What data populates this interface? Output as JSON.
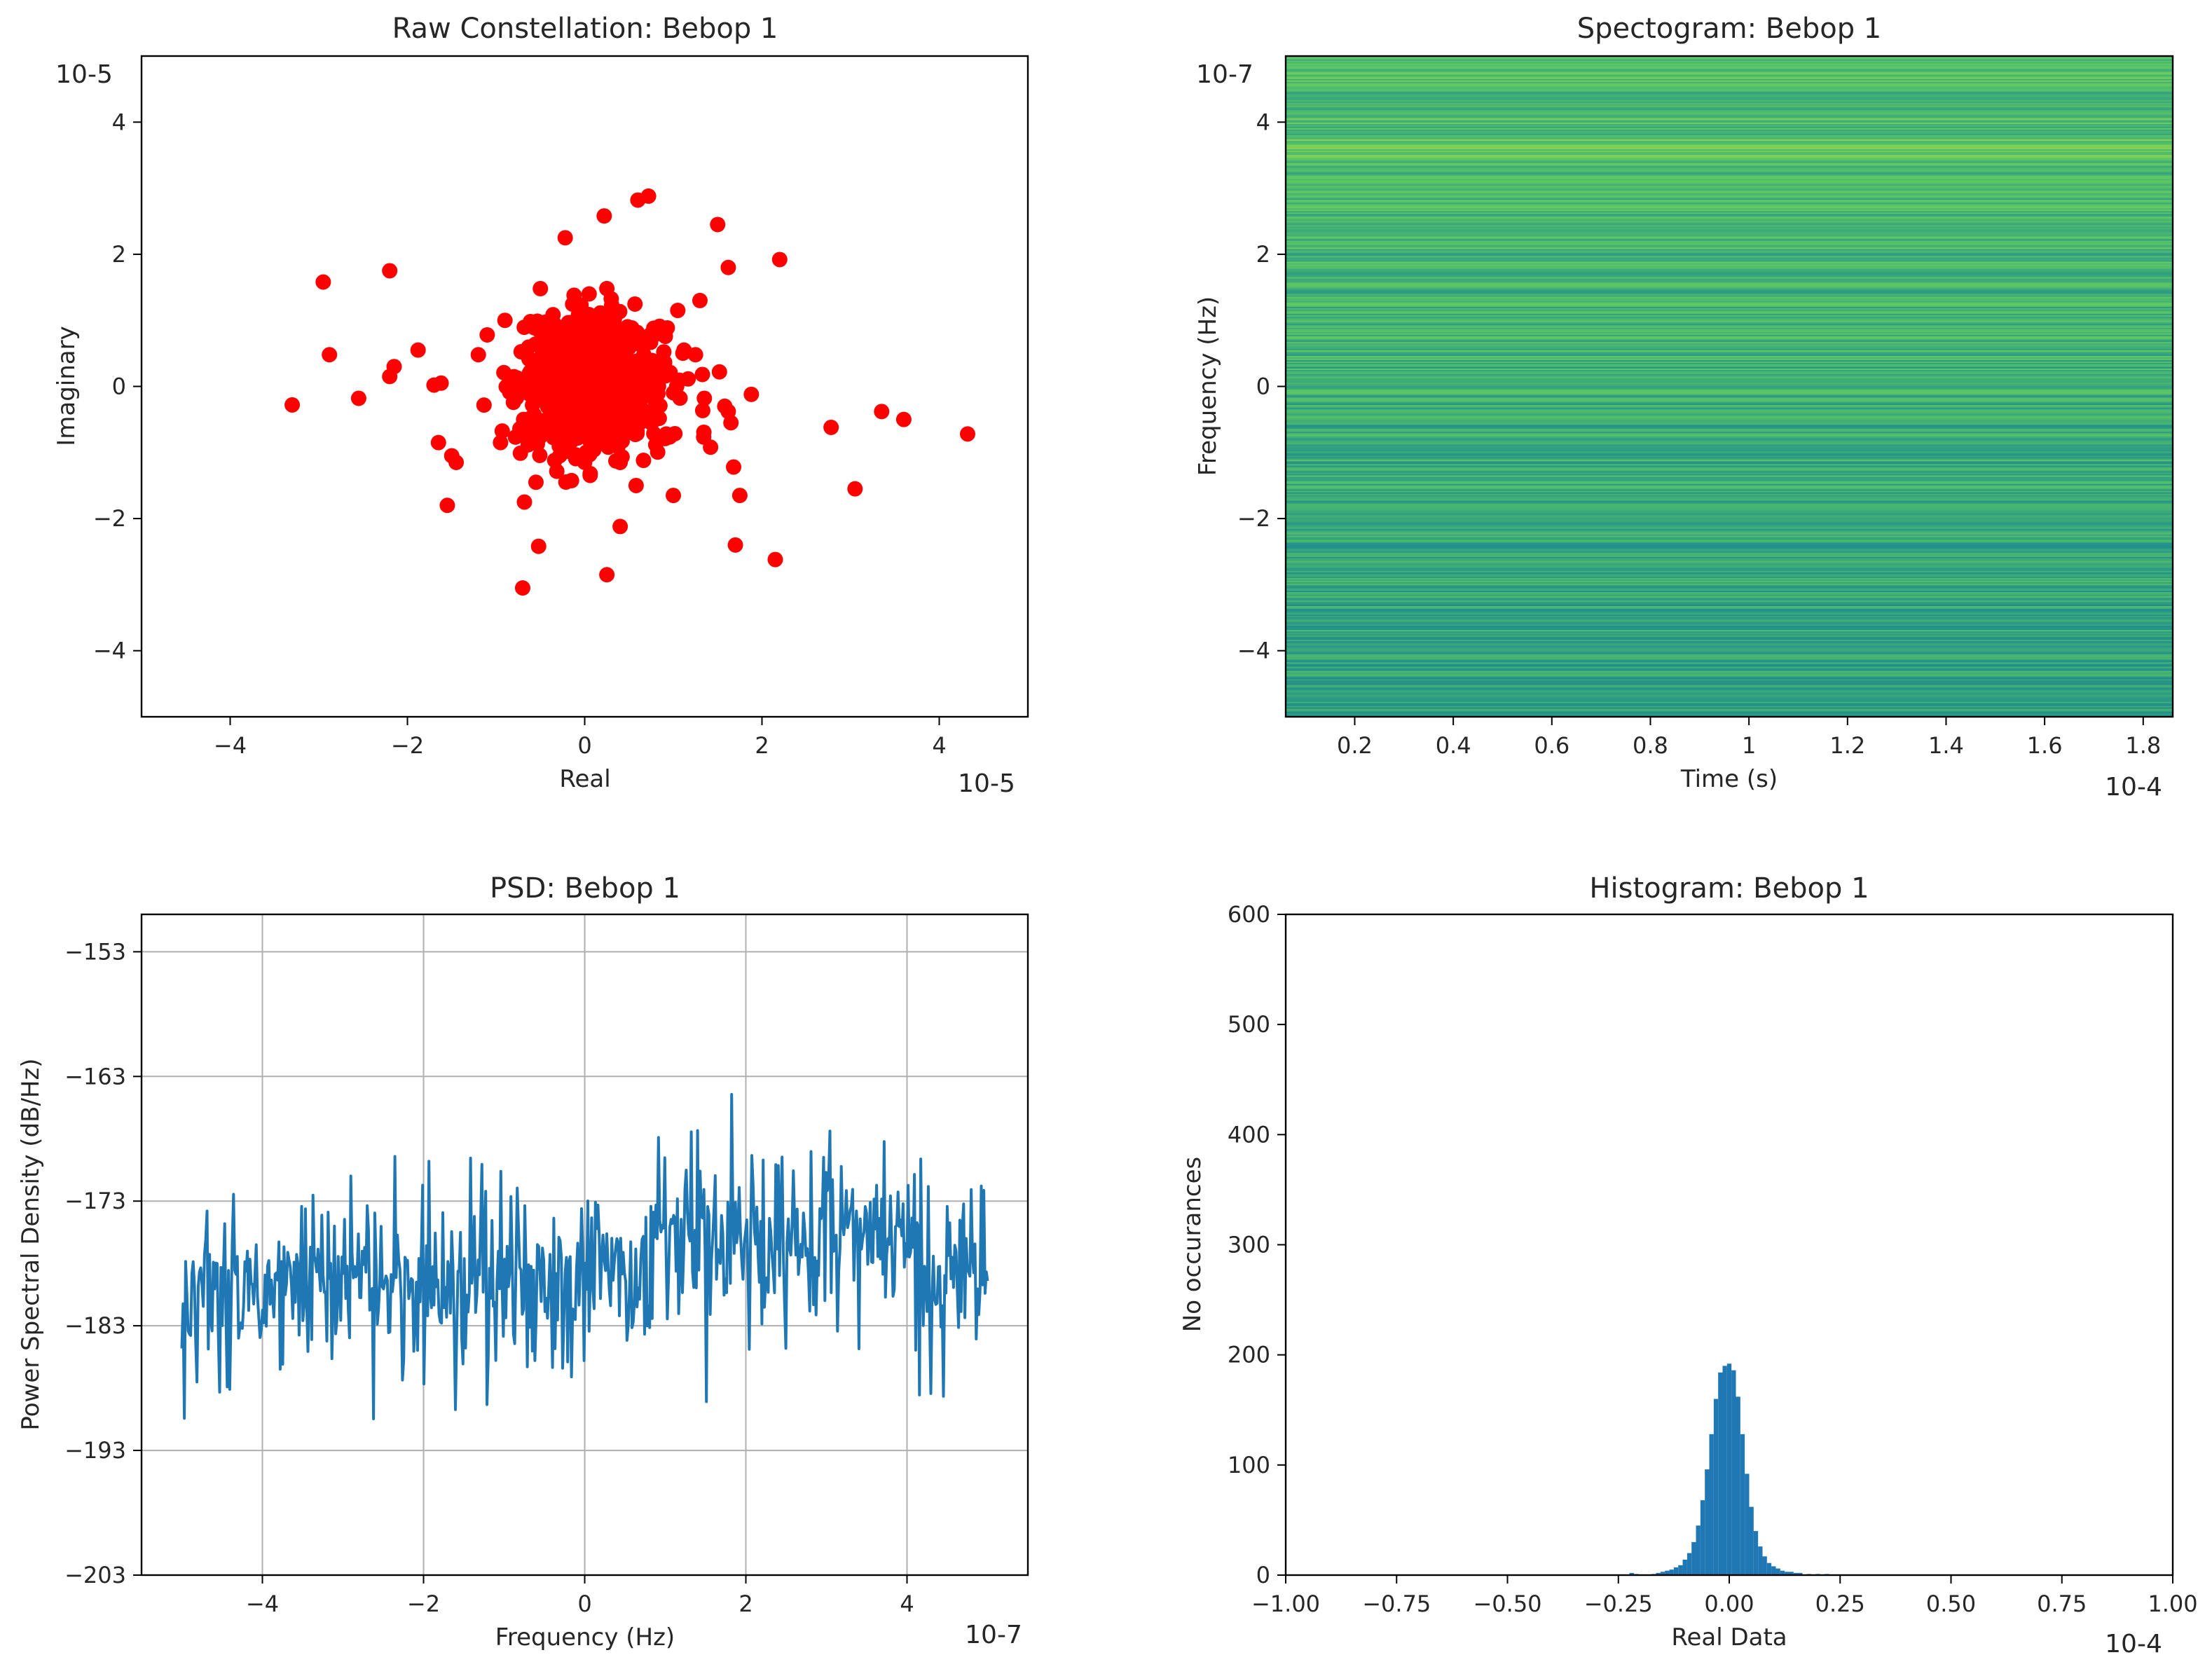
{
  "chart_data": [
    {
      "type": "scatter",
      "title": "Raw Constellation: Bebop 1",
      "xlabel": "Real",
      "ylabel": "Imaginary",
      "x_multiplier": "10-5",
      "y_multiplier": "10-5",
      "xlim": [
        -5,
        5
      ],
      "ylim": [
        -5,
        5
      ],
      "xticks": [
        -4,
        -2,
        0,
        2,
        4
      ],
      "yticks": [
        -4,
        -2,
        0,
        2,
        4
      ],
      "color": "#ff0000",
      "points": [
        [
          -3.3,
          -0.28
        ],
        [
          -2.95,
          1.58
        ],
        [
          -2.88,
          0.48
        ],
        [
          -2.55,
          -0.18
        ],
        [
          -2.2,
          1.75
        ],
        [
          -2.2,
          0.15
        ],
        [
          -2.15,
          0.3
        ],
        [
          -1.88,
          0.55
        ],
        [
          -1.7,
          0.02
        ],
        [
          -1.62,
          0.05
        ],
        [
          -1.65,
          -0.85
        ],
        [
          -1.55,
          -1.8
        ],
        [
          -1.5,
          -1.05
        ],
        [
          -1.45,
          -1.15
        ],
        [
          -1.2,
          0.48
        ],
        [
          -1.1,
          0.78
        ],
        [
          -0.95,
          -0.85
        ],
        [
          -0.9,
          1.0
        ],
        [
          -0.7,
          -3.05
        ],
        [
          -0.68,
          -1.75
        ],
        [
          -0.55,
          -1.45
        ],
        [
          -0.52,
          -2.42
        ],
        [
          -0.5,
          1.48
        ],
        [
          -0.22,
          2.25
        ],
        [
          -0.12,
          1.38
        ],
        [
          0.05,
          1.4
        ],
        [
          0.22,
          2.58
        ],
        [
          0.25,
          -2.85
        ],
        [
          0.25,
          1.48
        ],
        [
          0.4,
          -2.12
        ],
        [
          0.4,
          -1.15
        ],
        [
          0.6,
          2.82
        ],
        [
          0.72,
          2.88
        ],
        [
          0.58,
          -1.5
        ],
        [
          0.92,
          -0.72
        ],
        [
          1.0,
          -1.65
        ],
        [
          1.05,
          1.15
        ],
        [
          1.12,
          0.55
        ],
        [
          1.25,
          0.48
        ],
        [
          1.3,
          1.3
        ],
        [
          1.35,
          -0.18
        ],
        [
          1.42,
          -0.92
        ],
        [
          1.5,
          2.45
        ],
        [
          1.52,
          0.22
        ],
        [
          1.58,
          -0.3
        ],
        [
          1.62,
          1.8
        ],
        [
          1.62,
          -0.38
        ],
        [
          1.65,
          -0.55
        ],
        [
          1.68,
          -1.22
        ],
        [
          1.7,
          -2.4
        ],
        [
          1.75,
          -1.65
        ],
        [
          1.88,
          -0.12
        ],
        [
          2.15,
          -2.62
        ],
        [
          2.2,
          1.92
        ],
        [
          2.78,
          -0.62
        ],
        [
          3.05,
          -1.55
        ],
        [
          3.35,
          -0.38
        ],
        [
          3.6,
          -0.5
        ],
        [
          4.32,
          -0.72
        ]
      ],
      "core_cloud": {
        "center": [
          0.08,
          0.02
        ],
        "spread": [
          0.9,
          1.15
        ],
        "count": 700,
        "seed": 7
      }
    },
    {
      "type": "heatmap",
      "title": "Spectogram: Bebop 1",
      "xlabel": "Time (s)",
      "ylabel": "Frequency (Hz)",
      "x_multiplier": "10-4",
      "y_multiplier": "10-7",
      "xlim": [
        0.06,
        1.86
      ],
      "ylim": [
        -5,
        5
      ],
      "xticks": [
        0.2,
        0.4,
        0.6,
        0.8,
        1.0,
        1.2,
        1.4,
        1.6,
        1.8
      ],
      "ytick_labels": [
        "4",
        "2",
        "0",
        "−2",
        "−4"
      ],
      "yticks": [
        4,
        2,
        0,
        -2,
        -4
      ],
      "colormap": "viridis",
      "bright_band_freq": 3.6,
      "seed": 11
    },
    {
      "type": "line",
      "title": "PSD: Bebop 1",
      "xlabel": "Frequency (Hz)",
      "ylabel": "Power Spectral Density (dB/Hz)",
      "x_multiplier": "10-7",
      "xlim": [
        -5.5,
        5.5
      ],
      "ylim": [
        -203,
        -150
      ],
      "xticks": [
        -4,
        -2,
        0,
        2,
        4
      ],
      "yticks": [
        -153,
        -163,
        -173,
        -183,
        -193,
        -203
      ],
      "ytick_labels": [
        "−153",
        "−163",
        "−173",
        "−183",
        "−193",
        "−203"
      ],
      "grid": true,
      "color": "#1f77b4",
      "x_range": [
        -5.0,
        5.0
      ],
      "mean_low": -179.5,
      "mean_high": -175.5,
      "step_at": 0.85,
      "seed": 3
    },
    {
      "type": "bar",
      "title": "Histogram: Bebop 1",
      "xlabel": "Real Data",
      "ylabel": "No occurances",
      "x_multiplier": "10-4",
      "xlim": [
        -1.0,
        1.0
      ],
      "ylim": [
        0,
        600
      ],
      "xticks": [
        -1.0,
        -0.75,
        -0.5,
        -0.25,
        0.0,
        0.25,
        0.5,
        0.75,
        1.0
      ],
      "xtick_labels": [
        "−1.00",
        "−0.75",
        "−0.50",
        "−0.25",
        "0.00",
        "0.25",
        "0.50",
        "0.75",
        "1.00"
      ],
      "yticks": [
        0,
        100,
        200,
        300,
        400,
        500,
        600
      ],
      "color": "#1f77b4",
      "bin_width": 0.01,
      "bins": [
        {
          "x": -0.22,
          "v": 2
        },
        {
          "x": -0.21,
          "v": 1
        },
        {
          "x": -0.17,
          "v": 1
        },
        {
          "x": -0.16,
          "v": 2
        },
        {
          "x": -0.15,
          "v": 3
        },
        {
          "x": -0.14,
          "v": 4
        },
        {
          "x": -0.13,
          "v": 5
        },
        {
          "x": -0.12,
          "v": 7
        },
        {
          "x": -0.11,
          "v": 9
        },
        {
          "x": -0.1,
          "v": 14
        },
        {
          "x": -0.09,
          "v": 20
        },
        {
          "x": -0.08,
          "v": 30
        },
        {
          "x": -0.07,
          "v": 45
        },
        {
          "x": -0.06,
          "v": 68
        },
        {
          "x": -0.05,
          "v": 96
        },
        {
          "x": -0.04,
          "v": 128
        },
        {
          "x": -0.03,
          "v": 160
        },
        {
          "x": -0.02,
          "v": 184
        },
        {
          "x": -0.01,
          "v": 190
        },
        {
          "x": 0.0,
          "v": 192
        },
        {
          "x": 0.01,
          "v": 186
        },
        {
          "x": 0.02,
          "v": 162
        },
        {
          "x": 0.03,
          "v": 128
        },
        {
          "x": 0.04,
          "v": 92
        },
        {
          "x": 0.05,
          "v": 62
        },
        {
          "x": 0.06,
          "v": 40
        },
        {
          "x": 0.07,
          "v": 26
        },
        {
          "x": 0.08,
          "v": 17
        },
        {
          "x": 0.09,
          "v": 11
        },
        {
          "x": 0.1,
          "v": 8
        },
        {
          "x": 0.11,
          "v": 6
        },
        {
          "x": 0.12,
          "v": 4
        },
        {
          "x": 0.13,
          "v": 3
        },
        {
          "x": 0.14,
          "v": 3
        },
        {
          "x": 0.15,
          "v": 2
        },
        {
          "x": 0.16,
          "v": 2
        },
        {
          "x": 0.18,
          "v": 1
        },
        {
          "x": 0.2,
          "v": 1
        },
        {
          "x": 0.22,
          "v": 1
        }
      ]
    }
  ]
}
